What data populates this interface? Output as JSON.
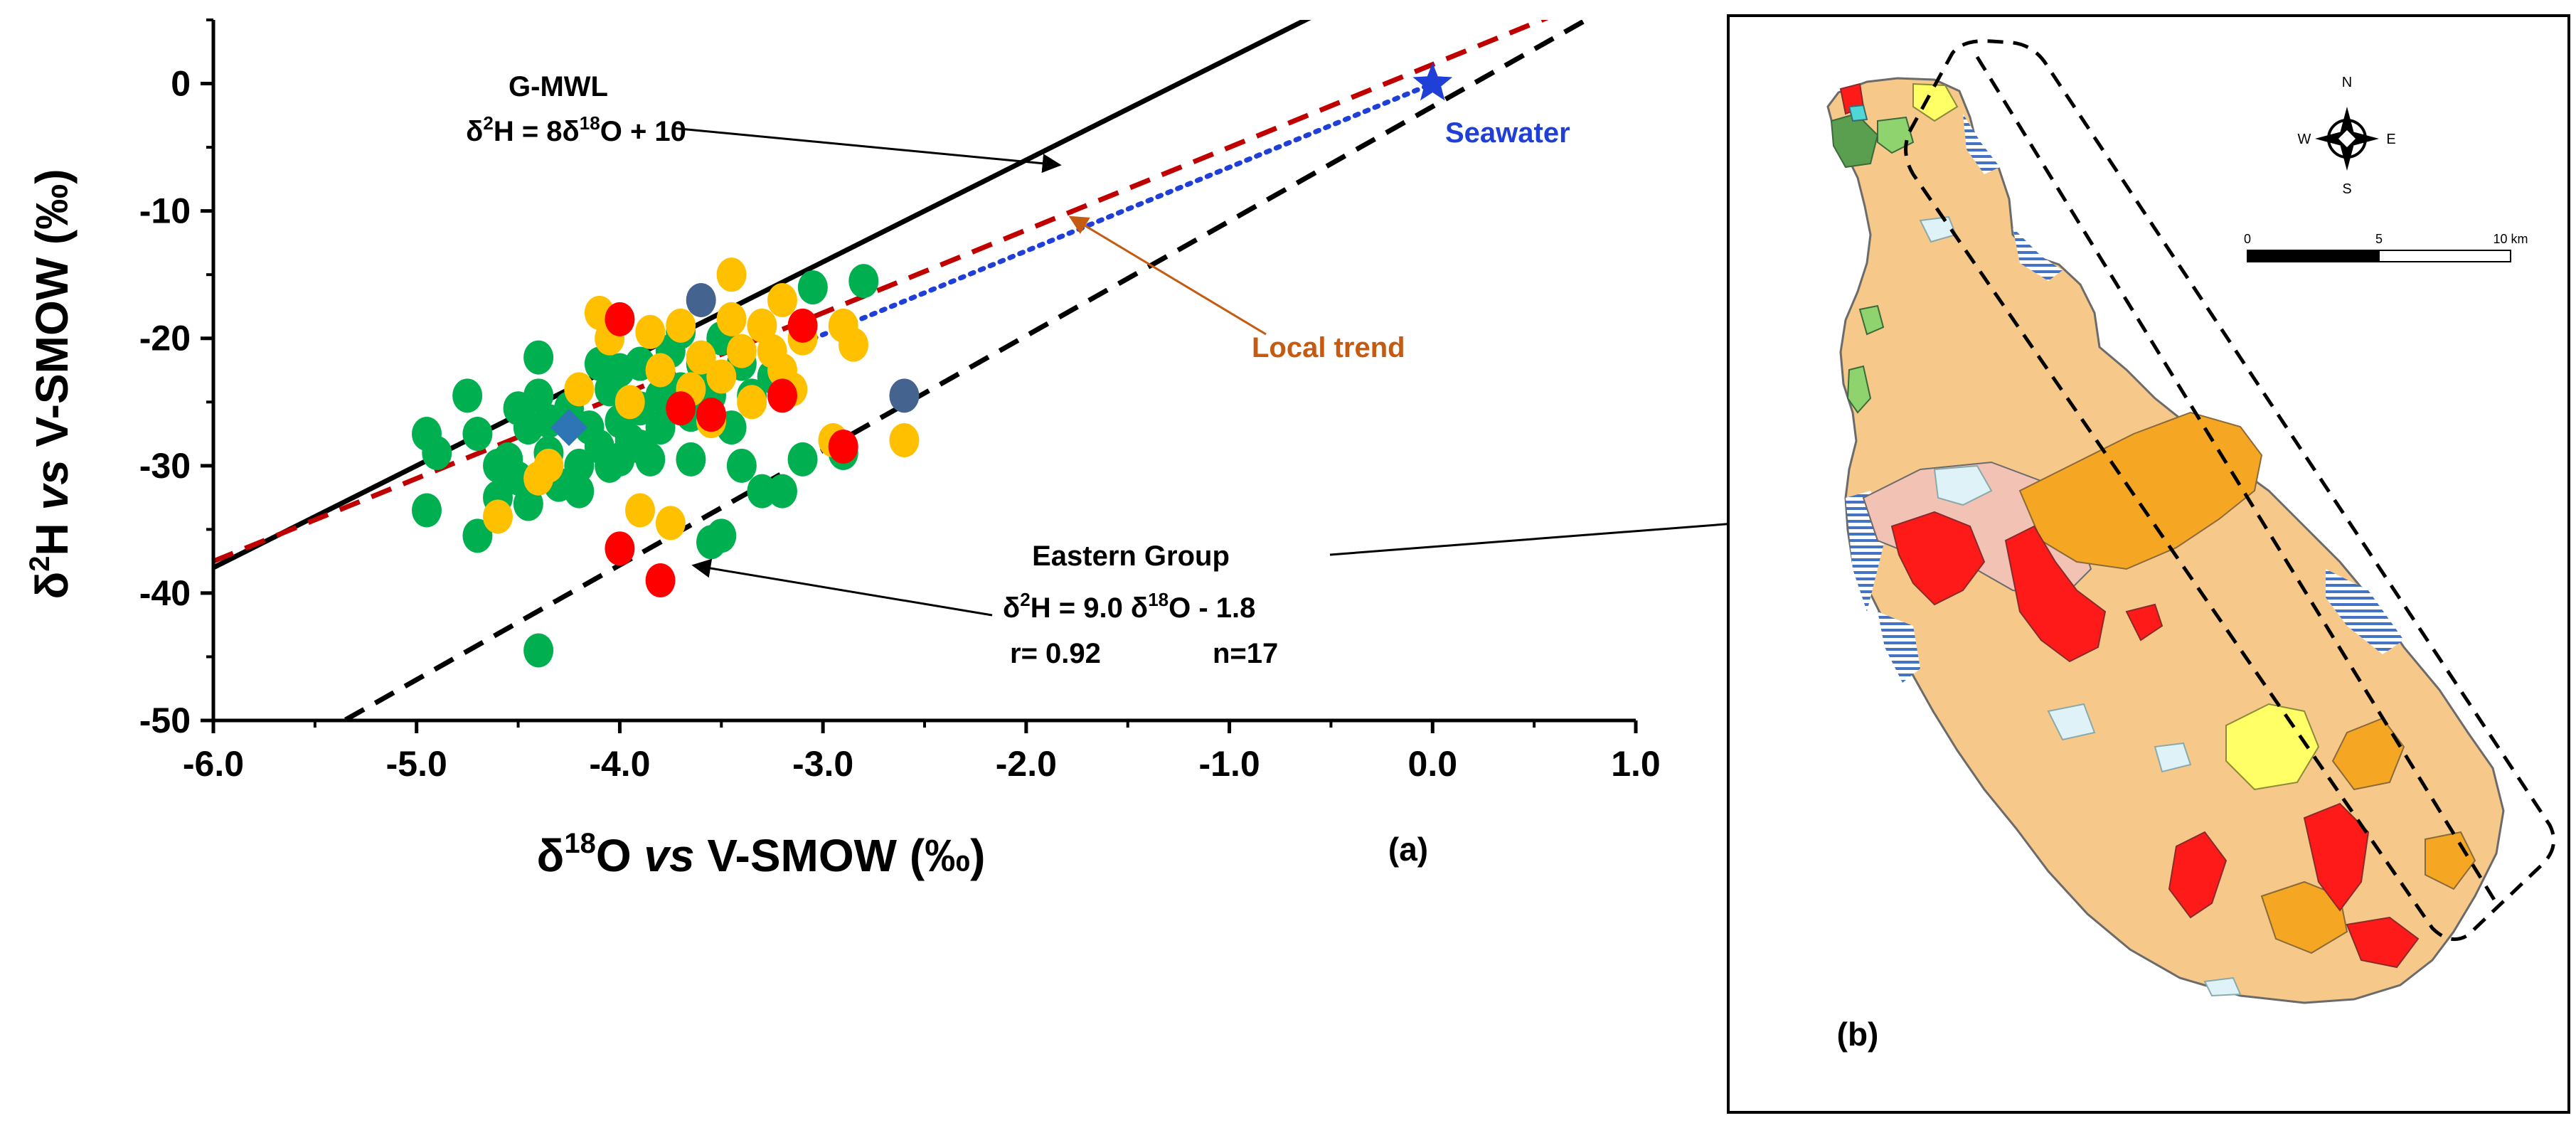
{
  "chart_data": {
    "type": "scatter",
    "xlabel": {
      "pre": "δ",
      "sup": "18",
      "mid": "O ",
      "vs": "vs",
      "post": " V-SMOW (‰)"
    },
    "ylabel": {
      "pre": "δ",
      "sup": "2",
      "mid": "H ",
      "vs": "vs",
      "post": " V-SMOW (‰)"
    },
    "xlim": [
      -6.0,
      1.0
    ],
    "ylim": [
      -50,
      5
    ],
    "x_ticks": [
      -6.0,
      -5.0,
      -4.0,
      -3.0,
      -2.0,
      -1.0,
      0.0,
      1.0
    ],
    "x_tick_labels": [
      "-6.0",
      "-5.0",
      "-4.0",
      "-3.0",
      "-2.0",
      "-1.0",
      "0.0",
      "1.0"
    ],
    "y_ticks": [
      0,
      -10,
      -20,
      -30,
      -40,
      -50
    ],
    "y_tick_labels": [
      "0",
      "-10",
      "-20",
      "-30",
      "-40",
      "-50"
    ],
    "panel_label": "(a)",
    "lines": [
      {
        "key": "gmwl",
        "style": "solid",
        "color": "#000000",
        "slope": 8,
        "intercept": 10,
        "x_range": [
          -6.0,
          0.7
        ]
      },
      {
        "key": "local",
        "style": "dashed",
        "color": "#c00000",
        "slope": 6.5,
        "intercept": 1.5,
        "x_range": [
          -6.0,
          0.7
        ]
      },
      {
        "key": "eastern",
        "style": "dashed",
        "color": "#000000",
        "slope": 9.0,
        "intercept": -1.8,
        "x_range": [
          -5.35,
          1.0
        ]
      },
      {
        "key": "mixing",
        "style": "dotted",
        "color": "#1f3fd6",
        "slope": 6.57,
        "intercept": 0.0,
        "x_range": [
          -3.1,
          0.0
        ]
      }
    ],
    "series": [
      {
        "color": "#00b050",
        "points": [
          [
            -4.95,
            -27.5
          ],
          [
            -4.9,
            -29.0
          ],
          [
            -4.95,
            -33.5
          ],
          [
            -4.75,
            -24.5
          ],
          [
            -4.7,
            -27.5
          ],
          [
            -4.7,
            -35.5
          ],
          [
            -4.6,
            -30.0
          ],
          [
            -4.6,
            -32.5
          ],
          [
            -4.55,
            -29.5
          ],
          [
            -4.5,
            -25.5
          ],
          [
            -4.5,
            -31.0
          ],
          [
            -4.45,
            -27.0
          ],
          [
            -4.45,
            -33.0
          ],
          [
            -4.4,
            -21.5
          ],
          [
            -4.4,
            -24.5
          ],
          [
            -4.35,
            -26.5
          ],
          [
            -4.35,
            -29.0
          ],
          [
            -4.3,
            -31.5
          ],
          [
            -4.25,
            -25.5
          ],
          [
            -4.2,
            -30.0
          ],
          [
            -4.2,
            -32.0
          ],
          [
            -4.15,
            -27.0
          ],
          [
            -4.1,
            -22.0
          ],
          [
            -4.1,
            -28.5
          ],
          [
            -4.05,
            -24.0
          ],
          [
            -4.05,
            -30.0
          ],
          [
            -4.0,
            -22.5
          ],
          [
            -4.0,
            -26.5
          ],
          [
            -3.95,
            -28.0
          ],
          [
            -3.9,
            -22.0
          ],
          [
            -3.9,
            -25.5
          ],
          [
            -3.85,
            -29.5
          ],
          [
            -3.8,
            -24.5
          ],
          [
            -3.8,
            -27.0
          ],
          [
            -3.75,
            -21.0
          ],
          [
            -3.7,
            -19.5
          ],
          [
            -3.7,
            -24.0
          ],
          [
            -3.65,
            -26.0
          ],
          [
            -3.65,
            -29.5
          ],
          [
            -3.6,
            -22.0
          ],
          [
            -3.55,
            -24.5
          ],
          [
            -3.55,
            -36.0
          ],
          [
            -3.5,
            -20.0
          ],
          [
            -3.5,
            -35.5
          ],
          [
            -3.45,
            -27.0
          ],
          [
            -3.4,
            -22.0
          ],
          [
            -3.4,
            -30.0
          ],
          [
            -3.35,
            -24.5
          ],
          [
            -3.3,
            -32.0
          ],
          [
            -3.25,
            -23.0
          ],
          [
            -3.2,
            -32.0
          ],
          [
            -3.1,
            -29.5
          ],
          [
            -3.05,
            -16.0
          ],
          [
            -2.9,
            -29.0
          ],
          [
            -2.8,
            -15.5
          ],
          [
            -4.4,
            -44.5
          ],
          [
            -4.0,
            -29.5
          ],
          [
            -3.9,
            -28.5
          ]
        ]
      },
      {
        "color": "#ffc000",
        "points": [
          [
            -4.6,
            -34.0
          ],
          [
            -4.4,
            -31.0
          ],
          [
            -4.35,
            -30.0
          ],
          [
            -4.1,
            -18.0
          ],
          [
            -4.05,
            -20.0
          ],
          [
            -3.95,
            -25.0
          ],
          [
            -3.9,
            -33.5
          ],
          [
            -3.85,
            -19.5
          ],
          [
            -3.8,
            -22.5
          ],
          [
            -3.7,
            -19.0
          ],
          [
            -3.65,
            -24.0
          ],
          [
            -3.6,
            -21.5
          ],
          [
            -3.55,
            -26.5
          ],
          [
            -3.5,
            -23.0
          ],
          [
            -3.45,
            -15.0
          ],
          [
            -3.45,
            -18.5
          ],
          [
            -3.4,
            -21.0
          ],
          [
            -3.35,
            -25.0
          ],
          [
            -3.3,
            -19.0
          ],
          [
            -3.25,
            -21.0
          ],
          [
            -3.2,
            -17.0
          ],
          [
            -3.2,
            -22.5
          ],
          [
            -3.15,
            -24.0
          ],
          [
            -3.1,
            -20.0
          ],
          [
            -2.95,
            -28.0
          ],
          [
            -2.9,
            -19.0
          ],
          [
            -2.85,
            -20.5
          ],
          [
            -2.6,
            -28.0
          ],
          [
            -3.75,
            -34.5
          ],
          [
            -4.2,
            -24.0
          ]
        ]
      },
      {
        "color": "#ff0000",
        "points": [
          [
            -4.0,
            -18.5
          ],
          [
            -4.0,
            -36.5
          ],
          [
            -3.8,
            -39.0
          ],
          [
            -3.7,
            -25.5
          ],
          [
            -3.55,
            -26.0
          ],
          [
            -3.2,
            -24.5
          ],
          [
            -3.1,
            -19.0
          ],
          [
            -2.9,
            -28.5
          ]
        ]
      },
      {
        "color": "#44638f",
        "points": [
          [
            -3.6,
            -17.0
          ],
          [
            -2.6,
            -24.5
          ]
        ]
      },
      {
        "color": "#2e75b6",
        "marker": "diamond",
        "points": [
          [
            -4.25,
            -27.0
          ]
        ]
      }
    ],
    "annotations": {
      "gmwl_title": "G-MWL",
      "gmwl_eq": {
        "a": "δ",
        "b": "2",
        "c": "H = 8δ",
        "d": "18",
        "e": "O + 10"
      },
      "seawater": "Seawater",
      "local_trend": "Local trend",
      "eastern_title": "Eastern Group",
      "eastern_eq": {
        "a": "δ",
        "b": "2",
        "c": "H = 9.0  δ",
        "d": "18",
        "e": "O - 1.8"
      },
      "eastern_r": "r= 0.92",
      "eastern_n": "n=17"
    }
  },
  "map": {
    "panel_label": "(b)",
    "north": "N",
    "south": "S",
    "east": "E",
    "west": "W",
    "scale_labels": [
      "0",
      "5",
      "10 km"
    ]
  },
  "colors": {
    "land": "#f6c88a",
    "orange_unit": "#f5a623",
    "red_unit": "#ff1a1a",
    "yellow_unit": "#ffff66",
    "pink_unit": "#f2c3b5",
    "lightblue_unit": "#dff2f8",
    "green_unit": "#8fd36f",
    "darkgreen_unit": "#5a9e4f",
    "water_hatch": "#4472c4",
    "brown_text": "#c55a11",
    "blue_text": "#1f3fd6"
  }
}
